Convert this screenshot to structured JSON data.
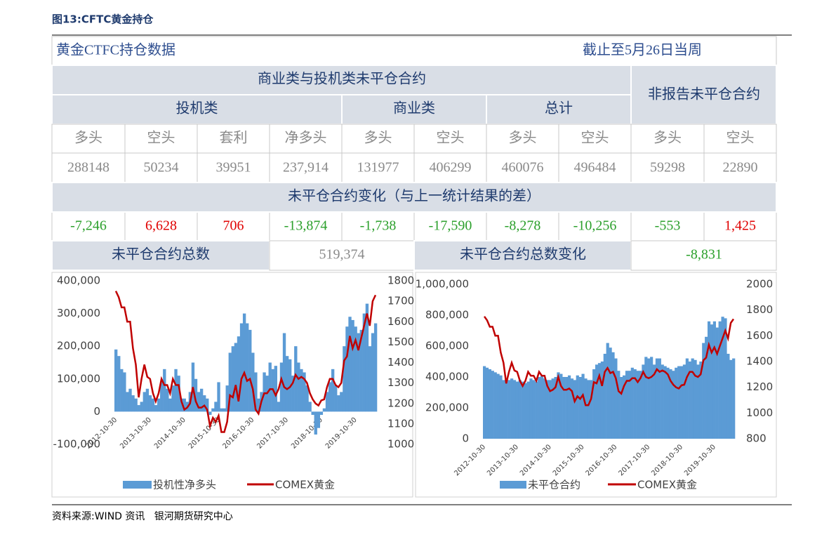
{
  "header": {
    "subtitle": "图13:CFTC黄金持仓"
  },
  "table": {
    "title": "黄金CTFC持仓数据",
    "date": "截止至5月26日当周",
    "group": "商业类与投机类未平仓合约",
    "nonreport": "非报告未平仓合约",
    "sub_groups": [
      "投机类",
      "商业类",
      "总计"
    ],
    "columns": [
      "多头",
      "空头",
      "套利",
      "净多头",
      "多头",
      "空头",
      "多头",
      "空头",
      "多头",
      "空头"
    ],
    "positions": [
      "288148",
      "50234",
      "39951",
      "237,914",
      "131977",
      "406299",
      "460076",
      "496484",
      "59298",
      "22890"
    ],
    "change_title": "未平仓合约变化（与上一统计结果的差）",
    "changes": [
      "-7,246",
      "6,628",
      "706",
      "-13,874",
      "-1,738",
      "-17,590",
      "-8,278",
      "-10,256",
      "-553",
      "1,425"
    ],
    "total_label": "未平仓合约总数",
    "total": "519,374",
    "total_change_label": "未平仓合约总数变化",
    "total_change": "-8,831"
  },
  "chart_data": [
    {
      "type": "combo",
      "categories": [
        "2012-10-30",
        null,
        null,
        null,
        null,
        null,
        null,
        null,
        null,
        null,
        null,
        null,
        "2013-10-30",
        null,
        null,
        null,
        null,
        null,
        null,
        null,
        null,
        null,
        null,
        null,
        "2014-10-30",
        null,
        null,
        null,
        null,
        null,
        null,
        null,
        null,
        null,
        null,
        null,
        "2015-10-30",
        null,
        null,
        null,
        null,
        null,
        null,
        null,
        null,
        null,
        null,
        null,
        "2016-10-30",
        null,
        null,
        null,
        null,
        null,
        null,
        null,
        null,
        null,
        null,
        null,
        "2017-10-30",
        null,
        null,
        null,
        null,
        null,
        null,
        null,
        null,
        null,
        null,
        null,
        "2018-10-30",
        null,
        null,
        null,
        null,
        null,
        null,
        null,
        null,
        null,
        null,
        null,
        "2019-10-30",
        null,
        null,
        null,
        null,
        null,
        null,
        null
      ],
      "series": [
        {
          "name": "投机性净多头",
          "type": "bar",
          "color": "#5b9bd5",
          "values": [
            190000,
            170000,
            130000,
            120000,
            60000,
            70000,
            50000,
            40000,
            20000,
            30000,
            60000,
            70000,
            50000,
            40000,
            20000,
            40000,
            90000,
            130000,
            70000,
            40000,
            80000,
            130000,
            110000,
            40000,
            40000,
            30000,
            60000,
            150000,
            100000,
            60000,
            70000,
            50000,
            40000,
            -10000,
            10000,
            30000,
            90000,
            10000,
            10000,
            80000,
            180000,
            200000,
            210000,
            230000,
            270000,
            300000,
            270000,
            250000,
            180000,
            120000,
            40000,
            60000,
            120000,
            110000,
            150000,
            130000,
            140000,
            30000,
            150000,
            240000,
            170000,
            160000,
            110000,
            200000,
            150000,
            130000,
            120000,
            80000,
            30000,
            -10000,
            -70000,
            -50000,
            -10000,
            10000,
            60000,
            90000,
            130000,
            80000,
            50000,
            60000,
            200000,
            260000,
            290000,
            280000,
            260000,
            240000,
            250000,
            300000,
            330000,
            200000,
            240000,
            270000
          ]
        },
        {
          "name": "COMEX黄金",
          "type": "line",
          "color": "#c00000",
          "axis": "y2",
          "values": [
            1750,
            1720,
            1670,
            1670,
            1600,
            1600,
            1470,
            1390,
            1230,
            1320,
            1390,
            1330,
            1320,
            1250,
            1210,
            1250,
            1320,
            1290,
            1290,
            1250,
            1320,
            1290,
            1290,
            1210,
            1170,
            1180,
            1200,
            1280,
            1210,
            1180,
            1180,
            1190,
            1170,
            1090,
            1130,
            1110,
            1140,
            1060,
            1060,
            1110,
            1240,
            1230,
            1290,
            1210,
            1320,
            1350,
            1310,
            1320,
            1270,
            1170,
            1150,
            1210,
            1250,
            1250,
            1270,
            1270,
            1240,
            1270,
            1320,
            1280,
            1270,
            1280,
            1300,
            1340,
            1320,
            1330,
            1320,
            1300,
            1250,
            1220,
            1200,
            1190,
            1215,
            1220,
            1280,
            1320,
            1320,
            1290,
            1280,
            1300,
            1410,
            1430,
            1530,
            1470,
            1510,
            1460,
            1520,
            1580,
            1640,
            1580,
            1700,
            1730
          ]
        }
      ],
      "ylim": [
        -100000,
        400000
      ],
      "yticks": [
        {
          "value": -100000,
          "label": "-100,000"
        },
        0,
        {
          "value": 100000,
          "label": "100,000"
        },
        {
          "value": 200000,
          "label": "200,000"
        },
        {
          "value": 300000,
          "label": "300,000"
        },
        {
          "value": 400000,
          "label": "400,000"
        }
      ],
      "y2lim": [
        1000,
        1800
      ],
      "y2ticks": [
        1000,
        1100,
        1200,
        1300,
        1400,
        1500,
        1600,
        1700,
        1800
      ],
      "grid": false,
      "legend": "bottom"
    },
    {
      "type": "combo",
      "categories": [
        "2012-10-30",
        null,
        null,
        null,
        null,
        null,
        null,
        null,
        null,
        null,
        null,
        null,
        "2013-10-30",
        null,
        null,
        null,
        null,
        null,
        null,
        null,
        null,
        null,
        null,
        null,
        "2014-10-30",
        null,
        null,
        null,
        null,
        null,
        null,
        null,
        null,
        null,
        null,
        null,
        "2015-10-30",
        null,
        null,
        null,
        null,
        null,
        null,
        null,
        null,
        null,
        null,
        null,
        "2016-10-30",
        null,
        null,
        null,
        null,
        null,
        null,
        null,
        null,
        null,
        null,
        null,
        "2017-10-30",
        null,
        null,
        null,
        null,
        null,
        null,
        null,
        null,
        null,
        null,
        null,
        "2018-10-30",
        null,
        null,
        null,
        null,
        null,
        null,
        null,
        null,
        null,
        null,
        null,
        "2019-10-30",
        null,
        null,
        null,
        null,
        null,
        null,
        null
      ],
      "series": [
        {
          "name": "未平仓合约",
          "type": "bar",
          "color": "#5b9bd5",
          "values": [
            470000,
            460000,
            450000,
            440000,
            430000,
            420000,
            410000,
            380000,
            370000,
            380000,
            390000,
            380000,
            370000,
            380000,
            370000,
            360000,
            370000,
            390000,
            380000,
            370000,
            400000,
            410000,
            390000,
            380000,
            380000,
            390000,
            400000,
            430000,
            420000,
            400000,
            400000,
            410000,
            390000,
            380000,
            410000,
            400000,
            420000,
            390000,
            380000,
            380000,
            450000,
            480000,
            490000,
            500000,
            550000,
            620000,
            590000,
            560000,
            520000,
            440000,
            400000,
            410000,
            440000,
            440000,
            460000,
            450000,
            440000,
            440000,
            480000,
            530000,
            520000,
            530000,
            480000,
            520000,
            520000,
            480000,
            470000,
            460000,
            450000,
            440000,
            460000,
            470000,
            470000,
            480000,
            520000,
            500000,
            520000,
            510000,
            480000,
            500000,
            620000,
            660000,
            760000,
            740000,
            760000,
            720000,
            760000,
            790000,
            780000,
            550000,
            510000,
            520000
          ]
        },
        {
          "name": "COMEX黄金",
          "type": "line",
          "color": "#c00000",
          "axis": "y2",
          "values": [
            1750,
            1720,
            1670,
            1670,
            1600,
            1600,
            1470,
            1390,
            1230,
            1320,
            1390,
            1330,
            1320,
            1250,
            1210,
            1250,
            1320,
            1290,
            1290,
            1250,
            1320,
            1290,
            1290,
            1210,
            1170,
            1180,
            1200,
            1280,
            1210,
            1180,
            1180,
            1190,
            1170,
            1090,
            1130,
            1110,
            1140,
            1060,
            1060,
            1110,
            1240,
            1230,
            1290,
            1210,
            1320,
            1350,
            1310,
            1320,
            1270,
            1170,
            1150,
            1210,
            1250,
            1250,
            1270,
            1270,
            1240,
            1270,
            1320,
            1280,
            1270,
            1280,
            1300,
            1340,
            1320,
            1330,
            1320,
            1300,
            1250,
            1220,
            1200,
            1190,
            1215,
            1220,
            1280,
            1320,
            1320,
            1290,
            1280,
            1300,
            1410,
            1430,
            1530,
            1470,
            1510,
            1460,
            1520,
            1580,
            1640,
            1580,
            1700,
            1730
          ]
        }
      ],
      "ylim": [
        0,
        1000000
      ],
      "yticks": [
        0,
        {
          "value": 200000,
          "label": "200,000"
        },
        {
          "value": 400000,
          "label": "400,000"
        },
        {
          "value": 600000,
          "label": "600,000"
        },
        {
          "value": 800000,
          "label": "800,000"
        },
        {
          "value": 1000000,
          "label": "1,000,000"
        }
      ],
      "y2lim": [
        800,
        2000
      ],
      "y2ticks": [
        800,
        1000,
        1200,
        1400,
        1600,
        1800,
        2000
      ],
      "grid": false,
      "legend": "bottom"
    }
  ],
  "source": "资料来源:WIND 资讯   银河期货研究中心"
}
